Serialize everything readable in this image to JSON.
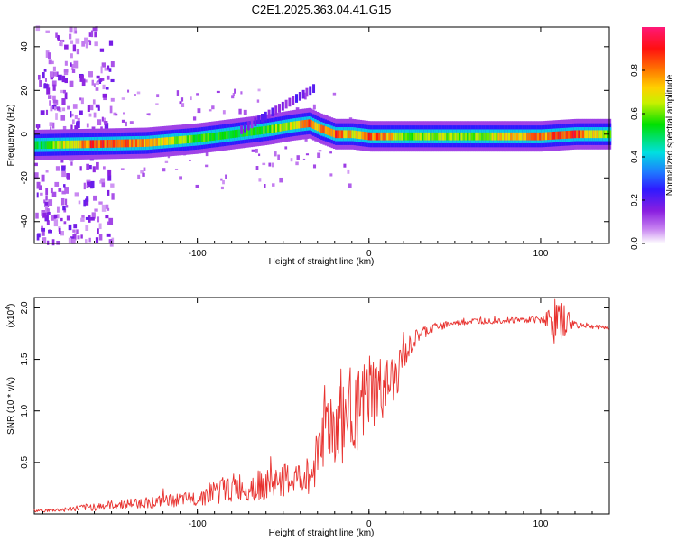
{
  "figure_title": "C2E1.2025.363.04.41.G15",
  "colors": {
    "snr_line": "#e8322f",
    "axis": "#000000",
    "background": "#ffffff"
  },
  "chart_data": [
    {
      "type": "heatmap",
      "title": "C2E1.2025.363.04.41.G15",
      "xlabel": "Height of straight line (km)",
      "ylabel": "Frequency (Hz)",
      "xlim": [
        -195,
        140
      ],
      "ylim": [
        -50,
        49
      ],
      "x_ticks": [
        -100,
        0,
        100
      ],
      "x_tick_labels": [
        "-100",
        "0",
        "100"
      ],
      "y_ticks": [
        -40,
        -20,
        0,
        20,
        40
      ],
      "y_tick_labels": [
        "-40",
        "-20",
        "0",
        "20",
        "40"
      ],
      "colorbar": {
        "label": "Normalized spectral amplitude",
        "range": [
          0,
          1
        ],
        "ticks": [
          0.0,
          0.2,
          0.4,
          0.6,
          0.8
        ],
        "tick_labels": [
          "0.0",
          "0.2",
          "0.4",
          "0.6",
          "0.8"
        ],
        "colormap": "rainbow (white-purple-blue-cyan-green-yellow-red-magenta)"
      },
      "ridge": {
        "description": "dominant frequency vs height",
        "x": [
          -195,
          -160,
          -130,
          -100,
          -80,
          -60,
          -45,
          -35,
          -30,
          -20,
          -10,
          0,
          20,
          60,
          100,
          120,
          140
        ],
        "freq": [
          -5,
          -4.5,
          -4,
          -2,
          0,
          2,
          4,
          5,
          3,
          0,
          0,
          -1,
          -1,
          -1,
          -1,
          0,
          0
        ],
        "amplitude": [
          0.5,
          0.9,
          0.8,
          0.6,
          0.55,
          0.6,
          0.7,
          0.85,
          0.8,
          0.9,
          0.75,
          0.9,
          0.65,
          0.65,
          0.85,
          0.9,
          0.6
        ]
      }
    },
    {
      "type": "line",
      "xlabel": "Height of straight line (km)",
      "ylabel": "SNR (10 * v/v)",
      "y_scale_label": "(x10",
      "y_scale_exp": "4",
      "xlim": [
        -195,
        140
      ],
      "ylim": [
        0,
        21000
      ],
      "x_ticks": [
        -100,
        0,
        100
      ],
      "x_tick_labels": [
        "-100",
        "0",
        "100"
      ],
      "y_ticks": [
        5000,
        10000,
        15000,
        20000
      ],
      "y_tick_labels": [
        "0.5",
        "1.0",
        "1.5",
        "2.0"
      ],
      "envelope": {
        "x": [
          -195,
          -180,
          -160,
          -140,
          -120,
          -100,
          -90,
          -80,
          -60,
          -50,
          -40,
          -33,
          -28,
          -25,
          -20,
          -15,
          -10,
          -5,
          0,
          5,
          10,
          15,
          20,
          25,
          30,
          40,
          50,
          60,
          80,
          100,
          105,
          108,
          110,
          115,
          120,
          130,
          140
        ],
        "y": [
          300,
          400,
          700,
          1000,
          1200,
          1500,
          2200,
          2500,
          2800,
          3200,
          3500,
          3800,
          8000,
          9000,
          8500,
          9000,
          10500,
          9800,
          11500,
          11800,
          12000,
          13000,
          15000,
          16500,
          17500,
          18200,
          18500,
          18700,
          18800,
          18900,
          19000,
          18500,
          18800,
          18600,
          18400,
          18200,
          18100
        ],
        "noise": [
          150,
          200,
          400,
          500,
          600,
          700,
          1300,
          1400,
          1500,
          1600,
          1600,
          2000,
          4000,
          4500,
          4500,
          4500,
          4000,
          4000,
          4500,
          3500,
          3000,
          2500,
          1500,
          1000,
          700,
          400,
          300,
          300,
          300,
          350,
          1000,
          2500,
          2000,
          1500,
          400,
          250,
          200
        ]
      }
    }
  ]
}
